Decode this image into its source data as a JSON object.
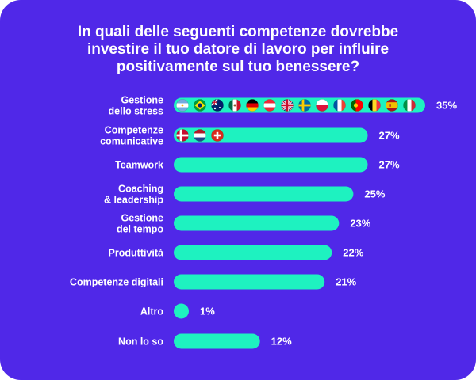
{
  "colors": {
    "background": "#5028e8",
    "bar": "#1ef2c0",
    "text": "#ffffff"
  },
  "chart_data": {
    "type": "bar",
    "orientation": "horizontal",
    "title": "In quali delle seguenti competenze dovrebbe\ninvestire il tuo datore di lavoro per influire\npositivamente sul tuo benessere?",
    "categories": [
      "Gestione\ndello stress",
      "Competenze\ncomunicative",
      "Teamwork",
      "Coaching\n& leadership",
      "Gestione\ndel tempo",
      "Produttività",
      "Competenze digitali",
      "Altro",
      "Non lo so"
    ],
    "values": [
      35,
      27,
      27,
      25,
      23,
      22,
      21,
      1,
      12
    ],
    "value_labels": [
      "35%",
      "27%",
      "27%",
      "25%",
      "23%",
      "22%",
      "21%",
      "1%",
      "12%"
    ],
    "xlim": [
      0,
      35
    ],
    "grid": false,
    "bar_flags": [
      [
        "argentina-flag-icon",
        "brazil-flag-icon",
        "australia-flag-icon",
        "mexico-flag-icon",
        "germany-flag-icon",
        "austria-flag-icon",
        "uk-flag-icon",
        "sweden-flag-icon",
        "poland-flag-icon",
        "france-flag-icon",
        "portugal-flag-icon",
        "belgium-flag-icon",
        "spain-flag-icon",
        "italy-flag-icon"
      ],
      [
        "denmark-flag-icon",
        "netherlands-flag-icon",
        "switzerland-flag-icon"
      ],
      [],
      [],
      [],
      [],
      [],
      [],
      []
    ]
  }
}
